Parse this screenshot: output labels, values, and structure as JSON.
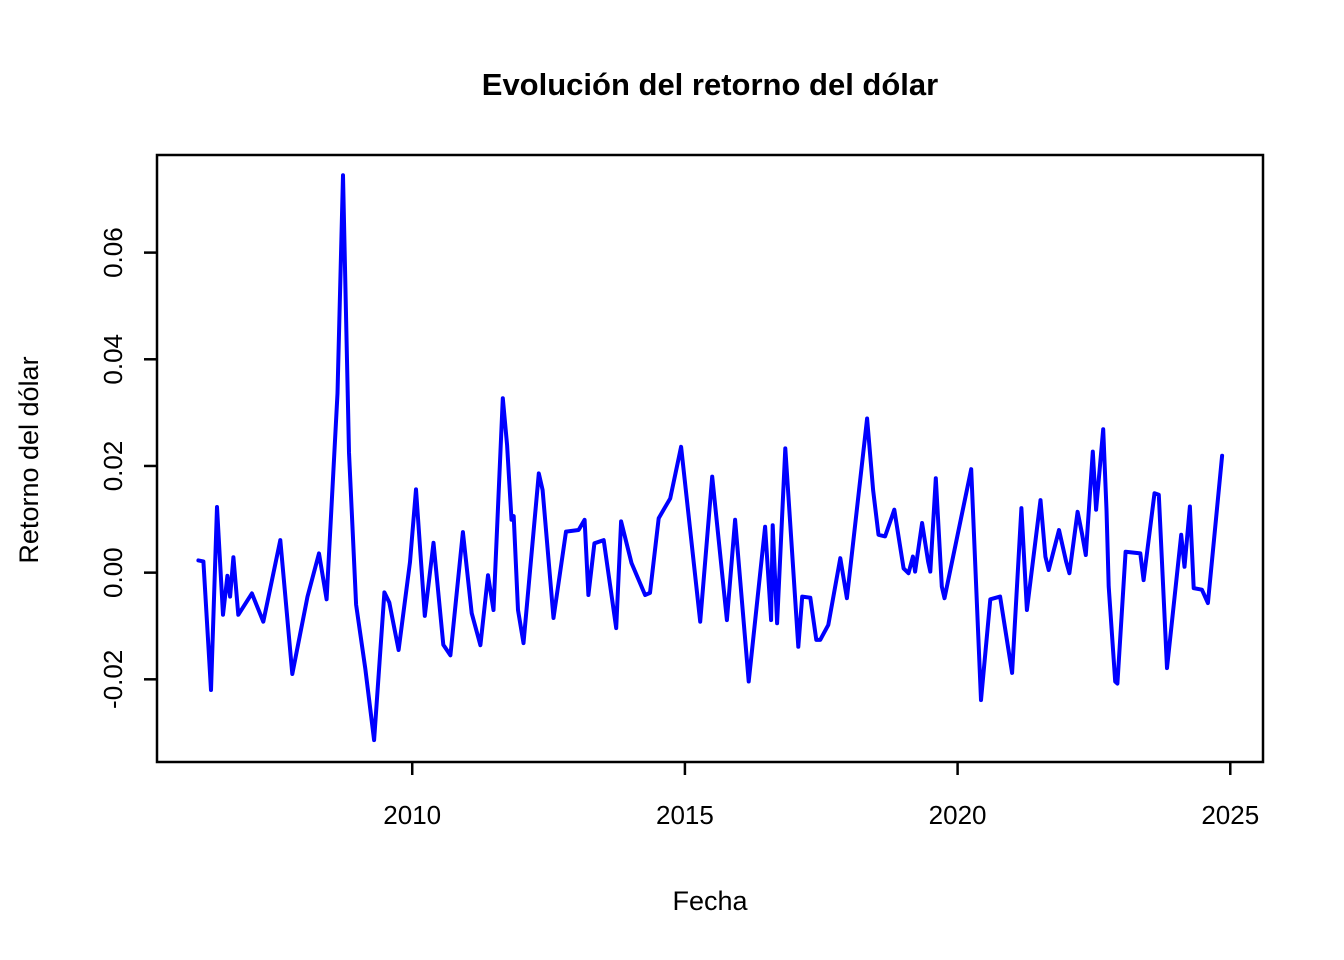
{
  "chart_data": {
    "type": "line",
    "title": "Evolución del retorno del dólar",
    "xlabel": "Fecha",
    "ylabel": "Retorno del dólar",
    "line_color": "#0000FF",
    "background_color": "#FFFFFF",
    "box_color": "#000000",
    "grid": "off",
    "legend": "none",
    "xlim": [
      2005.32,
      2025.6
    ],
    "ylim": [
      -0.0355,
      0.0783
    ],
    "x_ticks": [
      2010,
      2015,
      2020,
      2025
    ],
    "x_tick_labels": [
      "2010",
      "2015",
      "2020",
      "2025"
    ],
    "y_ticks": [
      -0.02,
      0.0,
      0.02,
      0.04,
      0.06
    ],
    "y_tick_labels": [
      "-0.02",
      "0.00",
      "0.02",
      "0.04",
      "0.06"
    ],
    "series_name": "retorno-del-dolar",
    "x": [
      2006.08,
      2006.17,
      2006.31,
      2006.42,
      2006.53,
      2006.61,
      2006.66,
      2006.72,
      2006.81,
      2007.06,
      2007.27,
      2007.58,
      2007.8,
      2008.08,
      2008.29,
      2008.43,
      2008.63,
      2008.73,
      2008.84,
      2008.97,
      2009.14,
      2009.3,
      2009.49,
      2009.58,
      2009.75,
      2009.96,
      2010.07,
      2010.23,
      2010.39,
      2010.57,
      2010.7,
      2010.93,
      2011.09,
      2011.25,
      2011.39,
      2011.49,
      2011.66,
      2011.74,
      2011.82,
      2011.86,
      2011.94,
      2012.04,
      2012.32,
      2012.39,
      2012.59,
      2012.82,
      2013.05,
      2013.16,
      2013.23,
      2013.34,
      2013.51,
      2013.74,
      2013.83,
      2014.02,
      2014.27,
      2014.36,
      2014.52,
      2014.61,
      2014.73,
      2014.93,
      2015.28,
      2015.5,
      2015.77,
      2015.92,
      2016.17,
      2016.47,
      2016.58,
      2016.61,
      2016.69,
      2016.84,
      2017.08,
      2017.15,
      2017.3,
      2017.41,
      2017.48,
      2017.63,
      2017.85,
      2017.97,
      2018.34,
      2018.45,
      2018.55,
      2018.67,
      2018.84,
      2019.01,
      2019.1,
      2019.18,
      2019.22,
      2019.35,
      2019.46,
      2019.5,
      2019.6,
      2019.71,
      2019.76,
      2020.25,
      2020.43,
      2020.6,
      2020.78,
      2021.0,
      2021.17,
      2021.27,
      2021.52,
      2021.61,
      2021.67,
      2021.86,
      2021.99,
      2022.05,
      2022.2,
      2022.28,
      2022.35,
      2022.48,
      2022.54,
      2022.67,
      2022.73,
      2022.77,
      2022.89,
      2022.93,
      2023.08,
      2023.35,
      2023.41,
      2023.61,
      2023.69,
      2023.84,
      2024.1,
      2024.16,
      2024.26,
      2024.33,
      2024.48,
      2024.59,
      2024.85
    ],
    "y": [
      0.0023,
      0.0021,
      -0.022,
      0.0123,
      -0.0079,
      -0.0006,
      -0.0045,
      0.0029,
      -0.0079,
      -0.0039,
      -0.0092,
      0.0061,
      -0.019,
      -0.0045,
      0.0036,
      -0.005,
      0.0336,
      0.0745,
      0.0225,
      -0.006,
      -0.018,
      -0.0314,
      -0.0037,
      -0.0056,
      -0.0145,
      0.002,
      0.0156,
      -0.0081,
      0.0056,
      -0.0135,
      -0.0155,
      0.0076,
      -0.0076,
      -0.0136,
      -0.0005,
      -0.007,
      0.0327,
      0.0239,
      0.0099,
      0.0106,
      -0.007,
      -0.0132,
      0.0186,
      0.0155,
      -0.0085,
      0.0077,
      0.008,
      0.0099,
      -0.0042,
      0.0055,
      0.0061,
      -0.0104,
      0.0096,
      0.0018,
      -0.0042,
      -0.0038,
      0.0102,
      0.0118,
      0.0139,
      0.0236,
      -0.0092,
      0.018,
      -0.0089,
      0.0099,
      -0.0204,
      0.0086,
      -0.0089,
      0.0089,
      -0.0095,
      0.0233,
      -0.0139,
      -0.0045,
      -0.0047,
      -0.0126,
      -0.0126,
      -0.0098,
      0.0027,
      -0.0048,
      0.0289,
      0.0155,
      0.0071,
      0.0068,
      0.0118,
      0.0008,
      -0.0001,
      0.003,
      0.0002,
      0.0093,
      0.0021,
      0.0002,
      0.0177,
      -0.0026,
      -0.0048,
      0.0194,
      -0.0239,
      -0.005,
      -0.0045,
      -0.0188,
      0.0121,
      -0.007,
      0.0136,
      0.003,
      0.0005,
      0.008,
      0.0021,
      -0.0001,
      0.0114,
      0.0074,
      0.0033,
      0.0227,
      0.0118,
      0.0269,
      0.0118,
      -0.0026,
      -0.0204,
      -0.0208,
      0.0039,
      0.0036,
      -0.0014,
      0.0149,
      0.0146,
      -0.0179,
      0.0071,
      0.0011,
      0.0124,
      -0.0029,
      -0.0032,
      -0.0057,
      0.0219
    ]
  }
}
